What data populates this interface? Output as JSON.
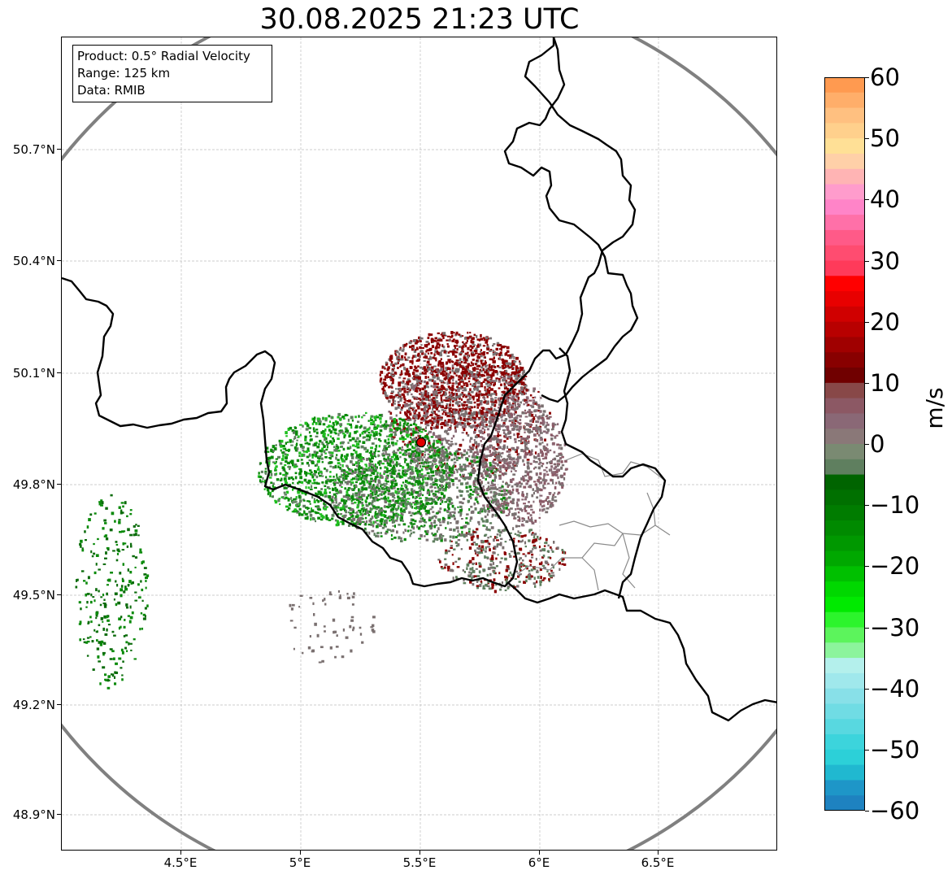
{
  "title": "30.08.2025 21:23 UTC",
  "info_box": {
    "product": "Product: 0.5° Radial Velocity",
    "range": "Range: 125 km",
    "data": "Data: RMIB"
  },
  "map": {
    "lon_range": [
      4.0,
      7.0
    ],
    "lat_range": [
      48.8,
      50.98
    ],
    "radar_site": {
      "lon": 5.505,
      "lat": 49.915
    },
    "range_ring_color": "#808080",
    "border_color": "#000000",
    "echo_colors": {
      "red": "#8b0000",
      "grey": "#7a7070",
      "green": "#0a8a0a",
      "bright_green": "#1fbf1f"
    }
  },
  "lat_ticks": [
    "50.7°N",
    "50.4°N",
    "50.1°N",
    "49.8°N",
    "49.5°N",
    "49.2°N",
    "48.9°N"
  ],
  "lon_ticks": [
    "4.5°E",
    "5°E",
    "5.5°E",
    "6°E",
    "6.5°E"
  ],
  "colorbar": {
    "label": "m/s",
    "ticks": [
      "60",
      "50",
      "40",
      "30",
      "20",
      "10",
      "0",
      "−10",
      "−20",
      "−30",
      "−40",
      "−50",
      "−60"
    ],
    "range": [
      -60,
      60
    ]
  }
}
